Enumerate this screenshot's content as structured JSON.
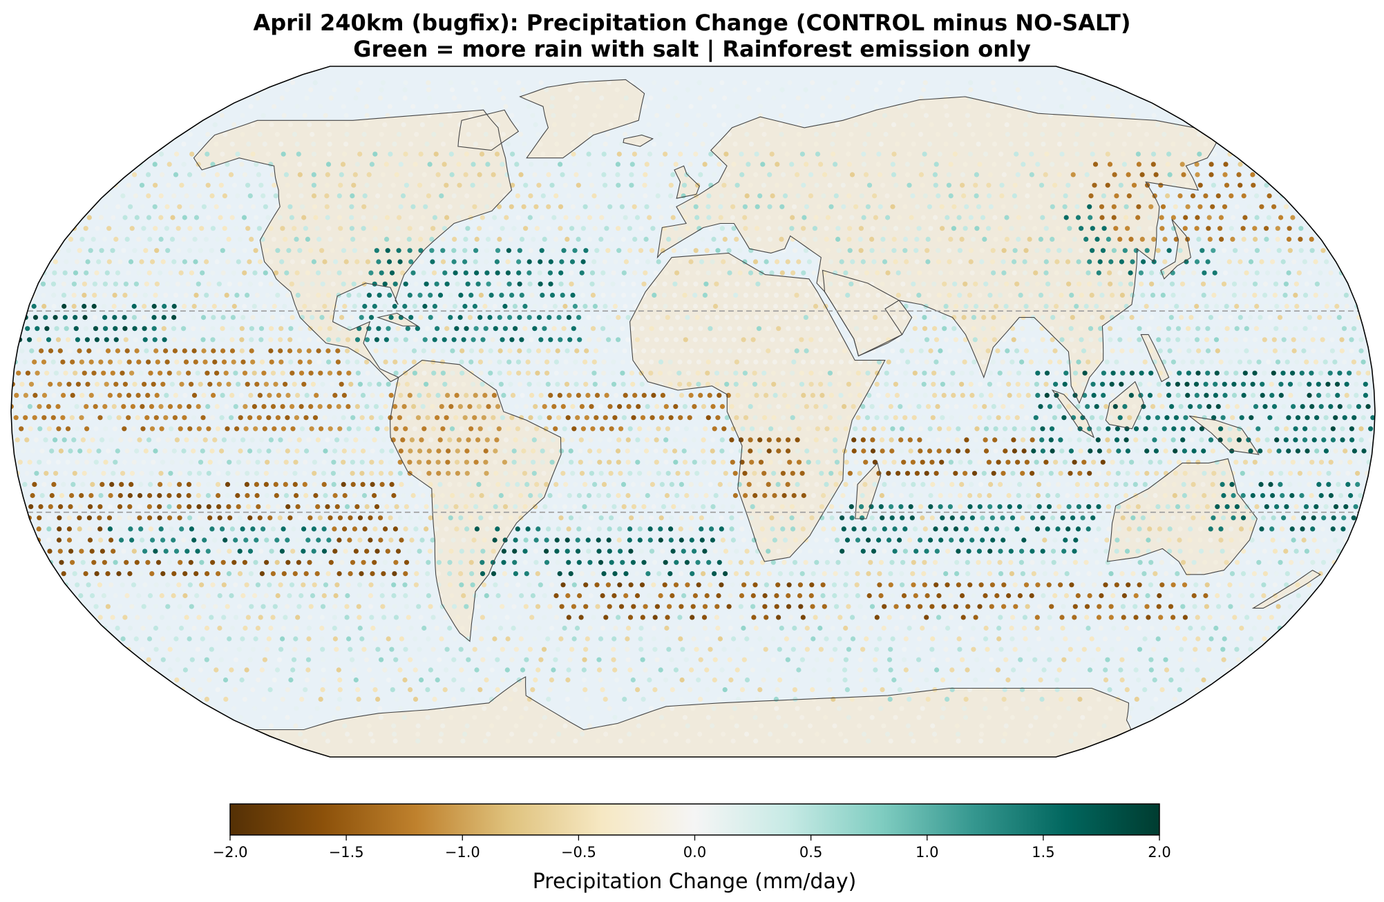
{
  "title": {
    "line1": "April 240km (bugfix): Precipitation Change (CONTROL minus NO-SALT)",
    "line2": "Green = more rain with salt | Rainforest emission only"
  },
  "map": {
    "projection": "Robinson",
    "ocean_color": "#e8f1f7",
    "land_color": "#f0eadc",
    "coastline_color": "#444444",
    "tropics_lines": [
      23.5,
      -23.5
    ]
  },
  "colorbar": {
    "label": "Precipitation Change (mm/day)",
    "min": -2.0,
    "max": 2.0,
    "ticks": [
      "−2.0",
      "−1.5",
      "−1.0",
      "−0.5",
      "0.0",
      "0.5",
      "1.0",
      "1.5",
      "2.0"
    ],
    "colormap": "BrBG",
    "stops": [
      "#543005",
      "#8c510a",
      "#bf812d",
      "#dfc27d",
      "#f6e8c3",
      "#f5f5f5",
      "#c7eae5",
      "#80cdc1",
      "#35978f",
      "#01665e",
      "#003c30"
    ]
  },
  "chart_data": {
    "type": "scatter",
    "title": "April 240km (bugfix): Precipitation Change (CONTROL minus NO-SALT)",
    "subtitle": "Green = more rain with salt | Rainforest emission only",
    "value_label": "Precipitation Change (mm/day)",
    "color_range": [
      -2.0,
      2.0
    ],
    "regions": [
      {
        "lon_range": [
          -180,
          -90
        ],
        "lat_range": [
          -5,
          15
        ],
        "value": -1.5
      },
      {
        "lon_range": [
          -180,
          -80
        ],
        "lat_range": [
          -40,
          -15
        ],
        "value": -1.8
      },
      {
        "lon_range": [
          -160,
          -100
        ],
        "lat_range": [
          -35,
          -25
        ],
        "value": 1.8
      },
      {
        "lon_range": [
          -180,
          -140
        ],
        "lat_range": [
          15,
          25
        ],
        "value": 2.0
      },
      {
        "lon_range": [
          -90,
          -30
        ],
        "lat_range": [
          15,
          40
        ],
        "value": 1.7
      },
      {
        "lon_range": [
          -80,
          -50
        ],
        "lat_range": [
          -15,
          5
        ],
        "value": -1.3
      },
      {
        "lon_range": [
          -60,
          10
        ],
        "lat_range": [
          -40,
          -25
        ],
        "value": 1.9
      },
      {
        "lon_range": [
          -40,
          10
        ],
        "lat_range": [
          -5,
          5
        ],
        "value": -1.6
      },
      {
        "lon_range": [
          -40,
          40
        ],
        "lat_range": [
          -50,
          -40
        ],
        "value": -1.8
      },
      {
        "lon_range": [
          10,
          30
        ],
        "lat_range": [
          -20,
          -5
        ],
        "value": -1.7
      },
      {
        "lon_range": [
          40,
          110
        ],
        "lat_range": [
          -15,
          -5
        ],
        "value": -1.8
      },
      {
        "lon_range": [
          40,
          110
        ],
        "lat_range": [
          -35,
          -20
        ],
        "value": 1.8
      },
      {
        "lon_range": [
          50,
          150
        ],
        "lat_range": [
          -50,
          -40
        ],
        "value": -1.7
      },
      {
        "lon_range": [
          90,
          180
        ],
        "lat_range": [
          -10,
          10
        ],
        "value": 1.9
      },
      {
        "lon_range": [
          110,
          150
        ],
        "lat_range": [
          30,
          50
        ],
        "value": 1.6
      },
      {
        "lon_range": [
          120,
          180
        ],
        "lat_range": [
          40,
          60
        ],
        "value": -1.5
      },
      {
        "lon_range": [
          140,
          180
        ],
        "lat_range": [
          -30,
          -15
        ],
        "value": 1.8
      },
      {
        "lon_range": [
          -20,
          60
        ],
        "lat_range": [
          10,
          30
        ],
        "value": 0.0
      }
    ]
  }
}
